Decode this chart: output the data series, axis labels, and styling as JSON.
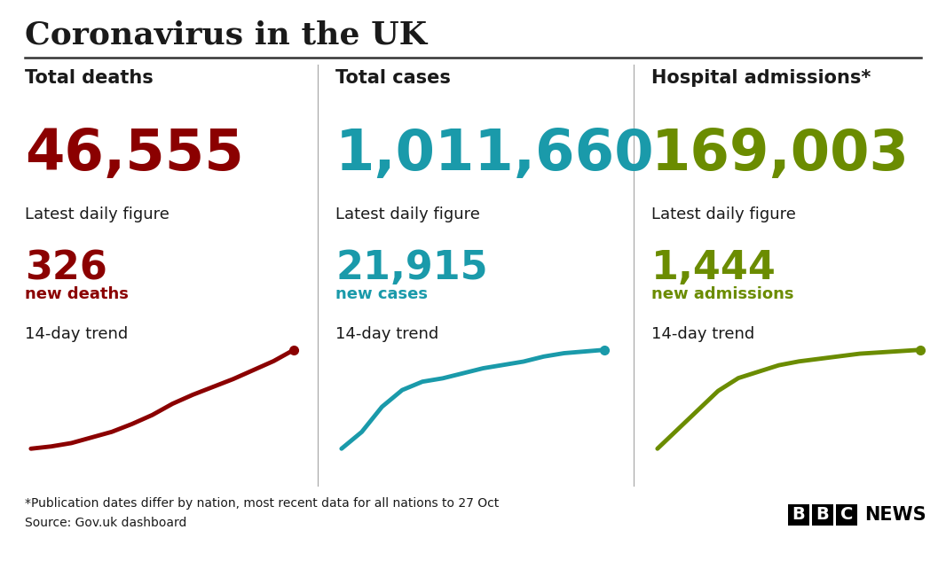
{
  "title": "Coronavirus in the UK",
  "bg_color": "#ffffff",
  "title_color": "#1a1a1a",
  "divider_color": "#333333",
  "separator_color": "#aaaaaa",
  "panels": [
    {
      "header": "Total deaths",
      "total": "46,555",
      "total_color": "#8b0000",
      "daily_label": "Latest daily figure",
      "daily_value": "326",
      "daily_value_color": "#8b0000",
      "daily_sublabel": "new deaths",
      "daily_sublabel_color": "#8b0000",
      "trend_label": "14-day trend",
      "trend_color": "#8b0000",
      "trend_x": [
        0,
        1,
        2,
        3,
        4,
        5,
        6,
        7,
        8,
        9,
        10,
        11,
        12,
        13
      ],
      "trend_y": [
        1.0,
        1.2,
        1.5,
        2.0,
        2.5,
        3.2,
        4.0,
        5.0,
        5.8,
        6.5,
        7.2,
        8.0,
        8.8,
        9.8
      ]
    },
    {
      "header": "Total cases",
      "total": "1,011,660",
      "total_color": "#1a9aaa",
      "daily_label": "Latest daily figure",
      "daily_value": "21,915",
      "daily_value_color": "#1a9aaa",
      "daily_sublabel": "new cases",
      "daily_sublabel_color": "#1a9aaa",
      "trend_label": "14-day trend",
      "trend_color": "#1a9aaa",
      "trend_x": [
        0,
        1,
        2,
        3,
        4,
        5,
        6,
        7,
        8,
        9,
        10,
        11,
        12,
        13
      ],
      "trend_y": [
        3.0,
        4.0,
        5.5,
        6.5,
        7.0,
        7.2,
        7.5,
        7.8,
        8.0,
        8.2,
        8.5,
        8.7,
        8.8,
        8.9
      ]
    },
    {
      "header": "Hospital admissions*",
      "total": "169,003",
      "total_color": "#6b8c00",
      "daily_label": "Latest daily figure",
      "daily_value": "1,444",
      "daily_value_color": "#6b8c00",
      "daily_sublabel": "new admissions",
      "daily_sublabel_color": "#6b8c00",
      "trend_label": "14-day trend",
      "trend_color": "#6b8c00",
      "trend_x": [
        0,
        1,
        2,
        3,
        4,
        5,
        6,
        7,
        8,
        9,
        10,
        11,
        12,
        13
      ],
      "trend_y": [
        2.0,
        3.5,
        5.0,
        6.5,
        7.5,
        8.0,
        8.5,
        8.8,
        9.0,
        9.2,
        9.4,
        9.5,
        9.6,
        9.7
      ]
    }
  ],
  "footnote1": "*Publication dates differ by nation, most recent data for all nations to 27 Oct",
  "footnote2": "Source: Gov.uk dashboard",
  "footnote_color": "#1a1a1a"
}
